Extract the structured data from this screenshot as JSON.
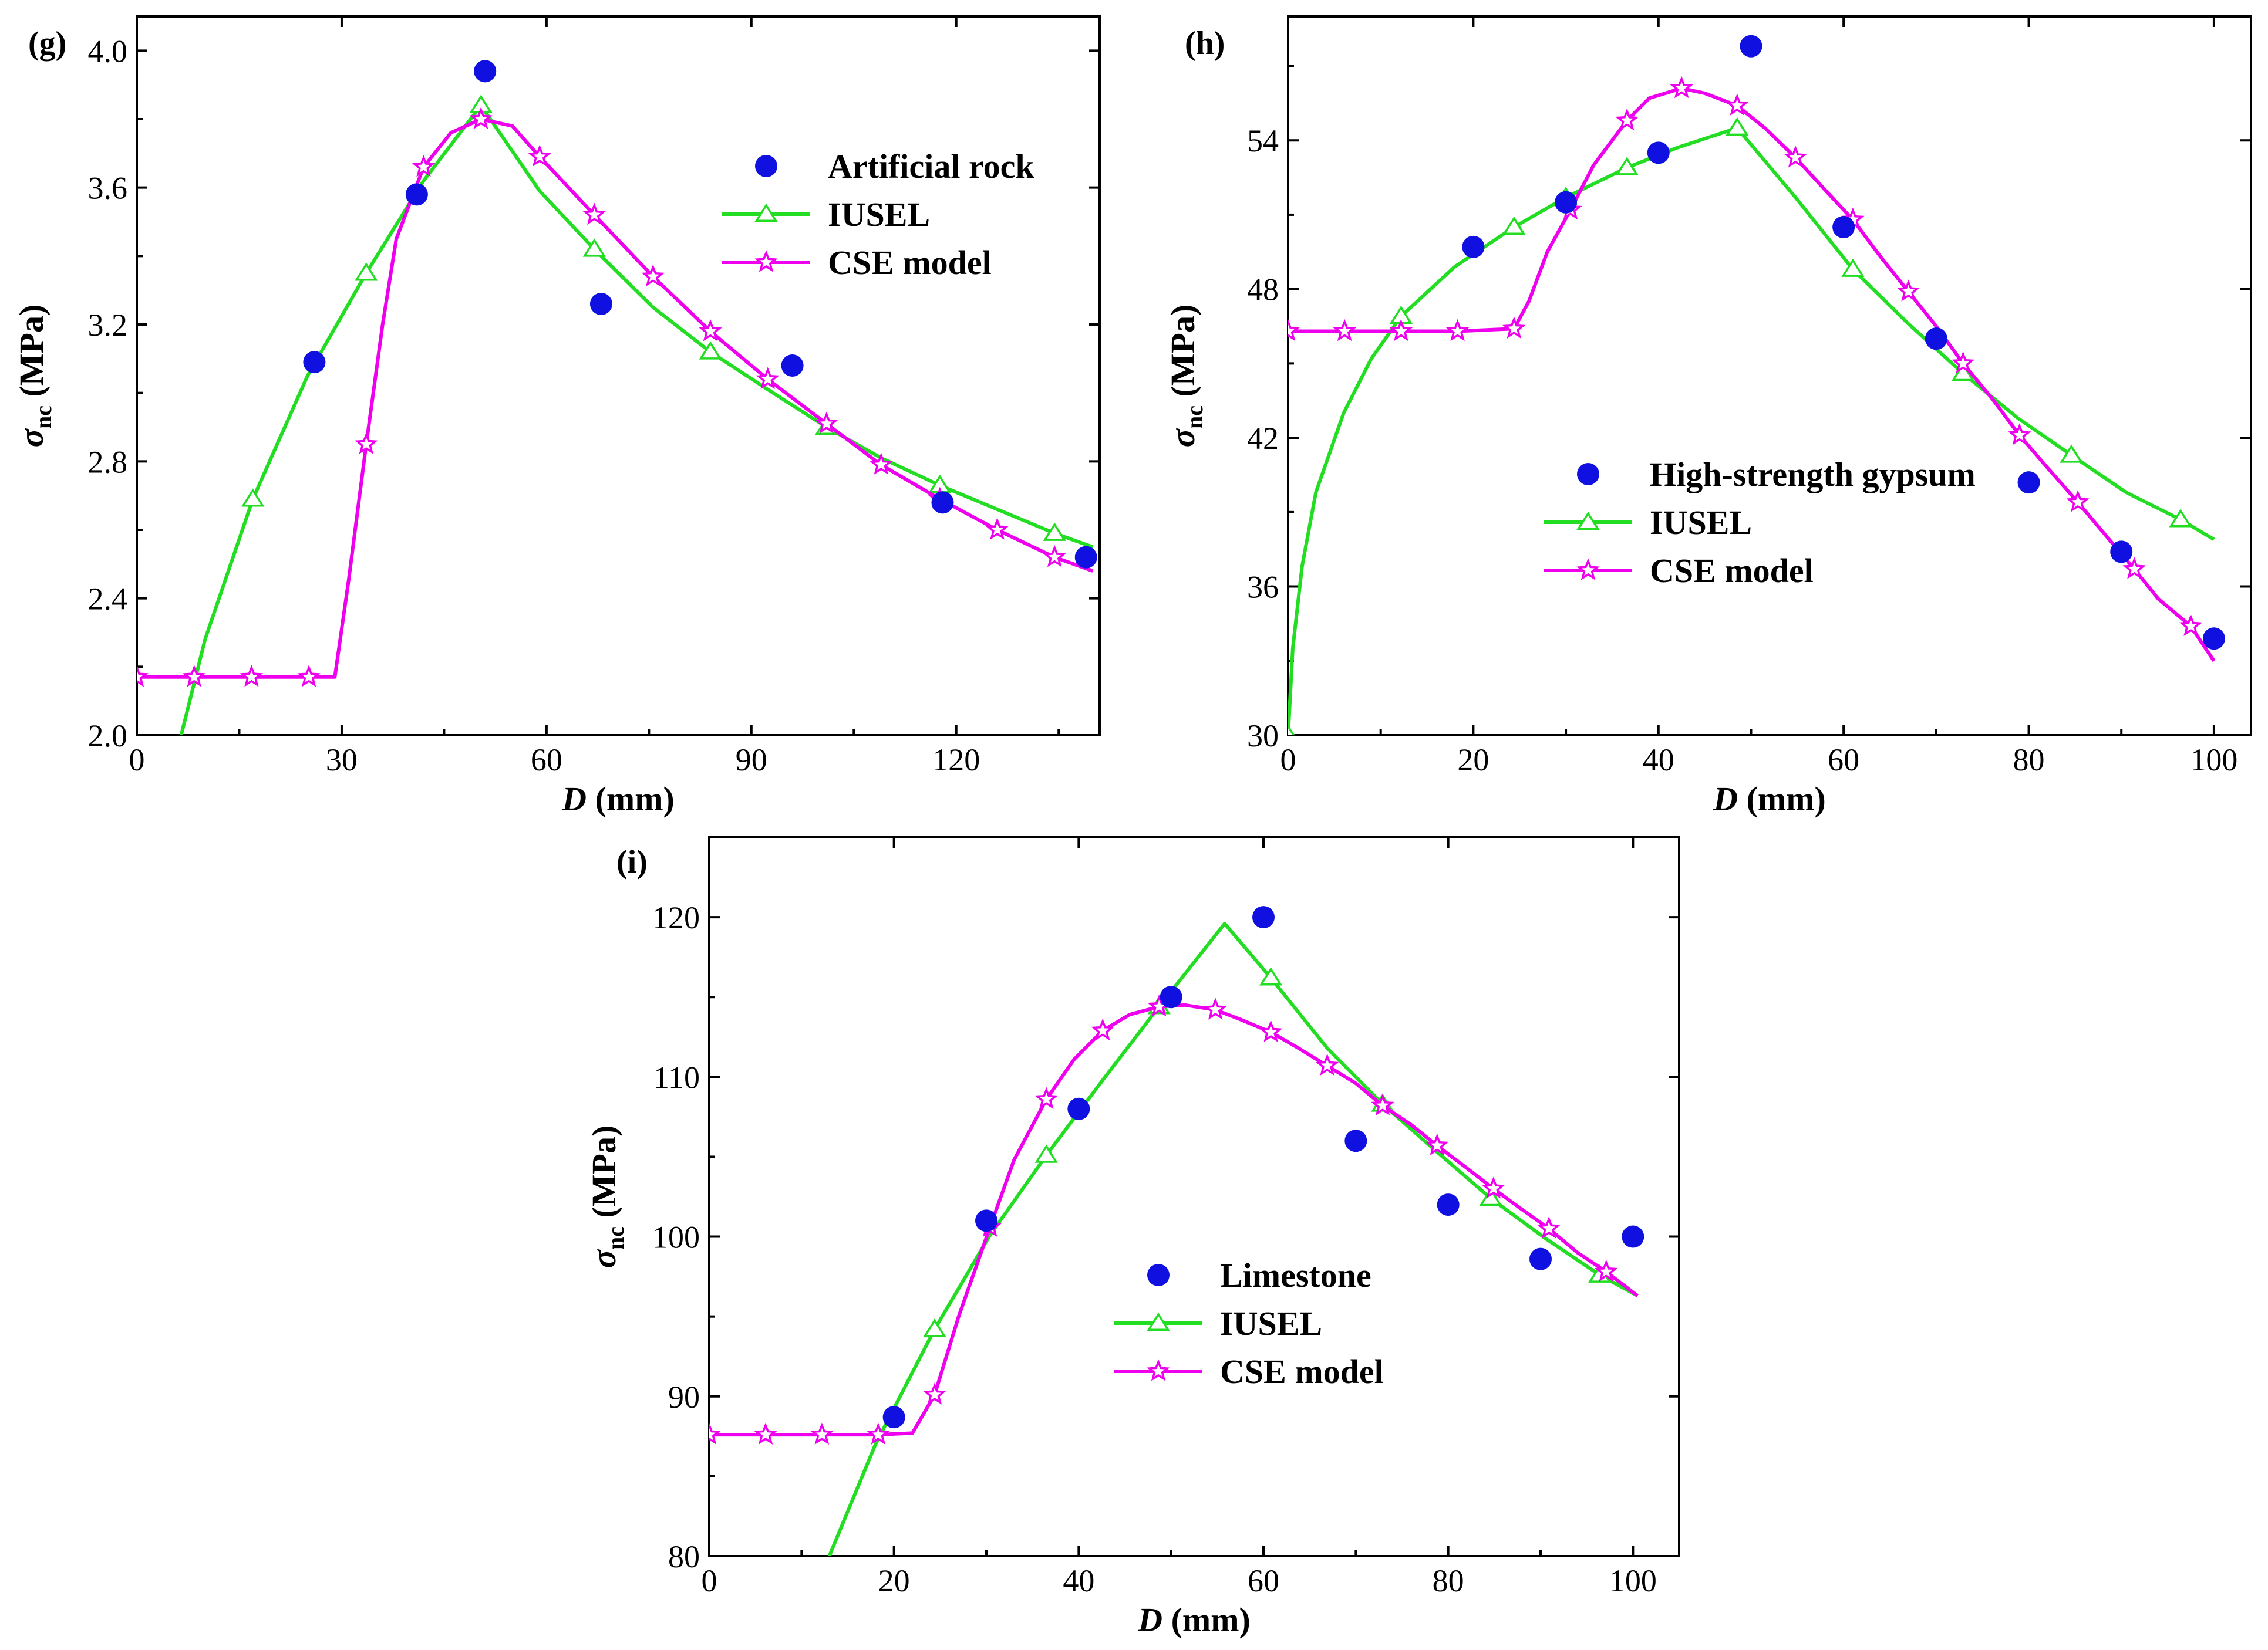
{
  "colors": {
    "exp": "#1010e0",
    "iusel": "#22dd22",
    "cse": "#ee00ee"
  },
  "chart_data": [
    {
      "type": "line",
      "panel": "(g)",
      "xlabel": "D (mm)",
      "ylabel": "σnc (MPa)",
      "xlim": [
        0,
        141
      ],
      "ylim": [
        2.0,
        4.1
      ],
      "xticks": [
        0,
        30,
        60,
        90,
        120
      ],
      "yticks": [
        2.0,
        2.4,
        2.8,
        3.2,
        3.6,
        4.0
      ],
      "tick_labels_x": [
        "0",
        "30",
        "60",
        "90",
        "120"
      ],
      "tick_labels_y": [
        "2.0",
        "2.4",
        "2.8",
        "3.2",
        "3.6",
        "4.0"
      ],
      "legend_position": "upper-right",
      "series": [
        {
          "name": "Artificial rock",
          "kind": "scatter",
          "x": [
            26,
            41,
            51,
            68,
            96,
            118,
            139
          ],
          "y": [
            3.09,
            3.58,
            3.94,
            3.26,
            3.08,
            2.68,
            2.52
          ]
        },
        {
          "name": "IUSEL",
          "kind": "line",
          "marker": "triangle",
          "x": [
            6.5,
            10,
            17,
            25,
            33.6,
            42,
            50.4,
            59,
            67,
            75.6,
            84,
            92.4,
            101,
            109,
            117.6,
            126,
            134.4,
            140
          ],
          "y": [
            2.0,
            2.28,
            2.69,
            3.05,
            3.35,
            3.62,
            3.84,
            3.59,
            3.42,
            3.25,
            3.12,
            3.01,
            2.9,
            2.81,
            2.73,
            2.66,
            2.59,
            2.55
          ],
          "marker_x": [
            17,
            33.6,
            50.4,
            67,
            84,
            101,
            117.6,
            134.4
          ]
        },
        {
          "name": "CSE model",
          "kind": "line",
          "marker": "star",
          "x": [
            0,
            8.4,
            16.8,
            25.2,
            29,
            31,
            33.6,
            36,
            38,
            42,
            46,
            50.4,
            55,
            59,
            67,
            75.6,
            84,
            92.4,
            101,
            109,
            117.6,
            126,
            134.4,
            140
          ],
          "y": [
            2.17,
            2.17,
            2.17,
            2.17,
            2.17,
            2.45,
            2.85,
            3.2,
            3.45,
            3.66,
            3.76,
            3.8,
            3.78,
            3.69,
            3.52,
            3.34,
            3.18,
            3.04,
            2.91,
            2.79,
            2.69,
            2.6,
            2.52,
            2.48
          ],
          "marker_x": [
            0,
            8.4,
            16.8,
            25.2,
            33.6,
            42,
            50.4,
            59,
            67,
            75.6,
            84,
            92.4,
            101,
            109,
            117.6,
            126,
            134.4
          ]
        }
      ]
    },
    {
      "type": "line",
      "panel": "(h)",
      "xlabel": "D (mm)",
      "ylabel": "σnc (MPa)",
      "xlim": [
        0,
        104
      ],
      "ylim": [
        30,
        59
      ],
      "xticks": [
        0,
        20,
        40,
        60,
        80,
        100
      ],
      "yticks": [
        30,
        36,
        42,
        48,
        54
      ],
      "tick_labels_x": [
        "0",
        "20",
        "40",
        "60",
        "80",
        "100"
      ],
      "tick_labels_y": [
        "30",
        "36",
        "42",
        "48",
        "54"
      ],
      "legend_position": "lower-center",
      "series": [
        {
          "name": "High-strength gypsum",
          "kind": "scatter",
          "x": [
            20,
            30,
            40,
            50,
            60,
            70,
            80,
            90,
            100
          ],
          "y": [
            49.7,
            51.5,
            53.5,
            57.8,
            50.5,
            46.0,
            40.2,
            37.4,
            33.9
          ]
        },
        {
          "name": "IUSEL",
          "kind": "line",
          "marker": "triangle",
          "x": [
            0,
            0.5,
            1.5,
            3,
            6,
            9,
            12.2,
            18,
            24.4,
            30,
            36.6,
            42,
            48.5,
            54.8,
            61,
            67,
            72.9,
            78.8,
            84.6,
            90.5,
            96.4,
            100
          ],
          "y": [
            30.0,
            33.5,
            36.8,
            39.8,
            43.0,
            45.2,
            46.9,
            48.9,
            50.5,
            51.7,
            52.9,
            53.7,
            54.5,
            51.7,
            48.8,
            46.6,
            44.6,
            42.8,
            41.3,
            39.8,
            38.7,
            37.9
          ],
          "marker_x": [
            0,
            12.2,
            24.4,
            30,
            36.6,
            48.5,
            61,
            72.9,
            84.6,
            96.4
          ]
        },
        {
          "name": "CSE model",
          "kind": "line",
          "marker": "star",
          "x": [
            0,
            6.1,
            12.2,
            18.3,
            24.4,
            26,
            28,
            30.5,
            33,
            36.6,
            39,
            42.5,
            45,
            48.5,
            51.5,
            54.8,
            58,
            61,
            64,
            67,
            70,
            72.9,
            76,
            79,
            82,
            85.3,
            88,
            91.4,
            94,
            97.5,
            100
          ],
          "y": [
            46.3,
            46.3,
            46.3,
            46.3,
            46.4,
            47.5,
            49.5,
            51.2,
            53.0,
            54.8,
            55.7,
            56.1,
            55.9,
            55.4,
            54.5,
            53.3,
            52.0,
            50.8,
            49.3,
            47.9,
            46.5,
            45.0,
            43.6,
            42.1,
            40.8,
            39.4,
            38.2,
            36.7,
            35.5,
            34.4,
            33.0
          ],
          "marker_x": [
            0,
            6.1,
            12.2,
            18.3,
            24.4,
            30.5,
            36.6,
            42.5,
            48.5,
            54.8,
            61,
            67,
            72.9,
            79,
            85.3,
            91.4,
            97.5
          ]
        }
      ]
    },
    {
      "type": "line",
      "panel": "(i)",
      "xlabel": "D (mm)",
      "ylabel": "σnc (MPa)",
      "xlim": [
        0,
        105
      ],
      "ylim": [
        80,
        125
      ],
      "xticks": [
        0,
        20,
        40,
        60,
        80,
        100
      ],
      "yticks": [
        80,
        90,
        100,
        110,
        120
      ],
      "tick_labels_x": [
        "0",
        "20",
        "40",
        "60",
        "80",
        "100"
      ],
      "tick_labels_y": [
        "80",
        "90",
        "100",
        "110",
        "120"
      ],
      "legend_position": "lower-center",
      "series": [
        {
          "name": "Limestone",
          "kind": "scatter",
          "x": [
            20,
            30,
            40,
            50,
            60,
            70,
            80,
            90,
            100
          ],
          "y": [
            88.7,
            101,
            108,
            115,
            120,
            106,
            102,
            98.6,
            100
          ]
        },
        {
          "name": "IUSEL",
          "kind": "line",
          "marker": "triangle",
          "x": [
            13,
            18,
            24.4,
            30.4,
            36.5,
            42.6,
            48.7,
            55.8,
            60.8,
            66.9,
            72.9,
            78.8,
            84.6,
            90.5,
            96.4,
            100.5
          ],
          "y": [
            80,
            87,
            94.2,
            100.1,
            105.1,
            109.8,
            114.4,
            119.6,
            116.2,
            111.8,
            108.3,
            105.3,
            102.4,
            99.9,
            97.6,
            96.3
          ],
          "marker_x": [
            24.4,
            36.5,
            48.7,
            60.8,
            72.9,
            84.6,
            96.4
          ]
        },
        {
          "name": "CSE model",
          "kind": "line",
          "marker": "star",
          "x": [
            0,
            6.1,
            12.2,
            18.3,
            22,
            24.4,
            27,
            30.4,
            33,
            36.5,
            39.5,
            42.6,
            45.5,
            48.7,
            51.5,
            54.8,
            57.5,
            60.8,
            63.5,
            66.9,
            70,
            72.9,
            76,
            78.8,
            82,
            84.9,
            88,
            90.9,
            94,
            97.1,
            100.5
          ],
          "y": [
            87.6,
            87.6,
            87.6,
            87.6,
            87.7,
            90.1,
            95.0,
            100.6,
            104.8,
            108.6,
            111.1,
            112.9,
            113.9,
            114.4,
            114.5,
            114.2,
            113.6,
            112.8,
            111.9,
            110.7,
            109.6,
            108.2,
            107.0,
            105.7,
            104.3,
            103.0,
            101.7,
            100.5,
            99.0,
            97.8,
            96.3
          ],
          "marker_x": [
            0,
            6.1,
            12.2,
            18.3,
            24.4,
            30.4,
            36.5,
            42.6,
            48.7,
            54.8,
            60.8,
            66.9,
            72.9,
            78.8,
            84.9,
            90.9,
            97.1
          ]
        }
      ]
    }
  ]
}
